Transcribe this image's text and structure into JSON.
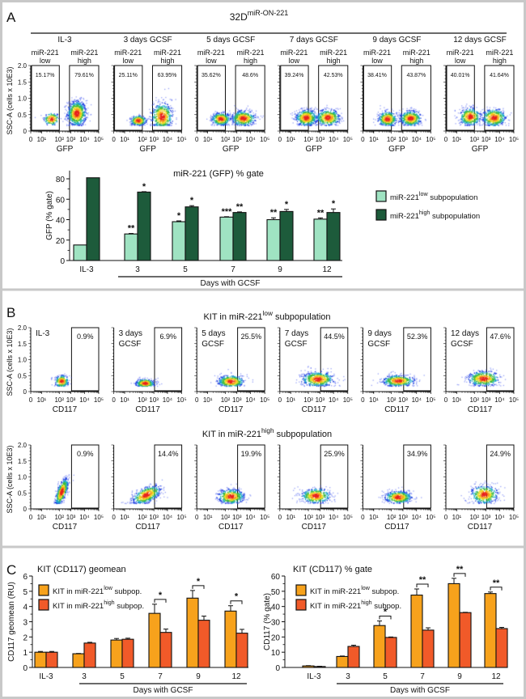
{
  "panel_labels": [
    "A",
    "B",
    "C"
  ],
  "colors": {
    "border": "#c8c8c8",
    "gfp_low": "#9fe3c2",
    "gfp_high": "#1d5b3b",
    "kit_low": "#f7a21c",
    "kit_high": "#f15a29"
  },
  "panelA": {
    "title": "32D",
    "title_sup": "miR-ON-221",
    "flow": {
      "y_axis_label": "SSC-A (cells x 10E3)",
      "x_axis_label": "GFP",
      "y_ticks": [
        "0",
        "0.5",
        "1.0",
        "1.5",
        "2.0"
      ],
      "x_ticks": [
        "0",
        "10¹",
        "10²",
        "10³",
        "10⁴",
        "10⁵"
      ],
      "gate_low_label": [
        "miR-221",
        "low"
      ],
      "gate_high_label": [
        "miR-221",
        "high"
      ],
      "plots": [
        {
          "title": "IL-3",
          "low_pct": "15.17%",
          "high_pct": "79.61%"
        },
        {
          "title": "3 days GCSF",
          "low_pct": "25.11%",
          "high_pct": "63.95%"
        },
        {
          "title": "5 days GCSF",
          "low_pct": "35.62%",
          "high_pct": "48.6%"
        },
        {
          "title": "7 days GCSF",
          "low_pct": "39.24%",
          "high_pct": "42.53%"
        },
        {
          "title": "9 days GCSF",
          "low_pct": "38.41%",
          "high_pct": "43.87%"
        },
        {
          "title": "12 days GCSF",
          "low_pct": "40.01%",
          "high_pct": "41.64%"
        }
      ]
    }
  },
  "panelB": {
    "rows": [
      {
        "title_base": "KIT in miR-221",
        "title_sup": "low",
        "title_suffix": " subpopulation",
        "plots": [
          {
            "label": [
              "IL-3"
            ],
            "pct": "0.9%"
          },
          {
            "label": [
              "3 days",
              "GCSF"
            ],
            "pct": "6.9%"
          },
          {
            "label": [
              "5 days",
              "GCSF"
            ],
            "pct": "25.5%"
          },
          {
            "label": [
              "7 days",
              "GCSF"
            ],
            "pct": "44.5%"
          },
          {
            "label": [
              "9 days",
              "GCSF"
            ],
            "pct": "52.3%"
          },
          {
            "label": [
              "12 days",
              "GCSF"
            ],
            "pct": "47.6%"
          }
        ]
      },
      {
        "title_base": "KIT in miR-221",
        "title_sup": "high",
        "title_suffix": " subpopulation",
        "plots": [
          {
            "label": [],
            "pct": "0.9%"
          },
          {
            "label": [],
            "pct": "14.4%"
          },
          {
            "label": [],
            "pct": "19.9%"
          },
          {
            "label": [],
            "pct": "25.9%"
          },
          {
            "label": [],
            "pct": "34.9%"
          },
          {
            "label": [],
            "pct": "24.9%"
          }
        ]
      }
    ],
    "y_axis_label": "SSC-A (cells x 10E3)",
    "x_axis_label": "CD117",
    "y_ticks": [
      "0",
      "0.5",
      "1.0",
      "1.5",
      "2.0"
    ],
    "x_ticks": [
      "0",
      "10¹",
      "10²",
      "10³",
      "10⁴",
      "10⁵"
    ]
  },
  "chart_data": [
    {
      "type": "bar",
      "title": "miR-221 (GFP) % gate",
      "ylabel": "GFP (% gate)",
      "xlabel": "Days with GCSF",
      "categories": [
        "IL-3",
        "3",
        "5",
        "7",
        "9",
        "12"
      ],
      "ylim": [
        0,
        88
      ],
      "yticks": [
        0,
        20,
        40,
        60,
        80
      ],
      "legend_position": "right",
      "series": [
        {
          "name_base": "miR-221",
          "name_sup": "low",
          "name_suffix": "subpopulation",
          "color": "#9fe3c2",
          "values": [
            15.2,
            26,
            38,
            42.5,
            40,
            40.5
          ],
          "errors": [
            0,
            0.5,
            0.8,
            0.4,
            1.8,
            1.2
          ],
          "stars": [
            "",
            "**",
            "*",
            "***",
            "**",
            "**"
          ]
        },
        {
          "name_base": "miR-221",
          "name_sup": "high",
          "name_suffix": "subpopulation",
          "color": "#1d5b3b",
          "values": [
            81,
            67,
            52.5,
            47,
            48,
            47
          ],
          "errors": [
            0,
            0.4,
            1.2,
            0.6,
            2.0,
            3.5
          ],
          "stars": [
            "",
            "*",
            "*",
            "**",
            "*",
            "*"
          ]
        }
      ]
    },
    {
      "type": "bar",
      "title": "KIT (CD117) geomean",
      "ylabel": "CD117 geomean (RU)",
      "xlabel": "Days with GCSF",
      "categories": [
        "IL-3",
        "3",
        "5",
        "7",
        "9",
        "12"
      ],
      "ylim": [
        0,
        6
      ],
      "yticks": [
        0,
        1,
        2,
        3,
        4,
        5,
        6
      ],
      "legend_position": "top-left",
      "series": [
        {
          "name_base": "KIT in miR-221",
          "name_sup": "low",
          "name_suffix": "subpop.",
          "color": "#f7a21c",
          "values": [
            1.0,
            0.9,
            1.8,
            3.55,
            4.55,
            3.7
          ],
          "errors": [
            0.05,
            0.02,
            0.1,
            0.6,
            0.5,
            0.35
          ]
        },
        {
          "name_base": "KIT in miR-221",
          "name_sup": "high",
          "name_suffix": "subpop.",
          "color": "#f15a29",
          "values": [
            1.0,
            1.6,
            1.85,
            2.3,
            3.1,
            2.25
          ],
          "errors": [
            0.05,
            0.05,
            0.07,
            0.22,
            0.27,
            0.25
          ]
        }
      ],
      "significance": [
        "",
        "",
        "",
        "*",
        "*",
        "*"
      ]
    },
    {
      "type": "bar",
      "title": "KIT (CD117)  % gate",
      "ylabel": "CD117 (% gate)",
      "xlabel": "Days with GCSF",
      "categories": [
        "IL-3",
        "3",
        "5",
        "7",
        "9",
        "12"
      ],
      "ylim": [
        0,
        60
      ],
      "yticks": [
        0,
        10,
        20,
        30,
        40,
        50,
        60
      ],
      "legend_position": "top-left",
      "series": [
        {
          "name_base": "KIT in miR-221",
          "name_sup": "low",
          "name_suffix": "subpop.",
          "color": "#f7a21c",
          "values": [
            1.0,
            7.2,
            27.5,
            47.5,
            55,
            48.5
          ],
          "errors": [
            0.2,
            0.3,
            3,
            4,
            3.5,
            1
          ]
        },
        {
          "name_base": "KIT in miR-221",
          "name_sup": "high",
          "name_suffix": "subpop.",
          "color": "#f15a29",
          "values": [
            0.6,
            13.8,
            19.7,
            24.5,
            36,
            25.5
          ],
          "errors": [
            0.2,
            0.8,
            0.3,
            1.5,
            0.2,
            0.8
          ]
        }
      ],
      "significance": [
        "",
        "",
        "*",
        "**",
        "**",
        "**"
      ]
    }
  ]
}
